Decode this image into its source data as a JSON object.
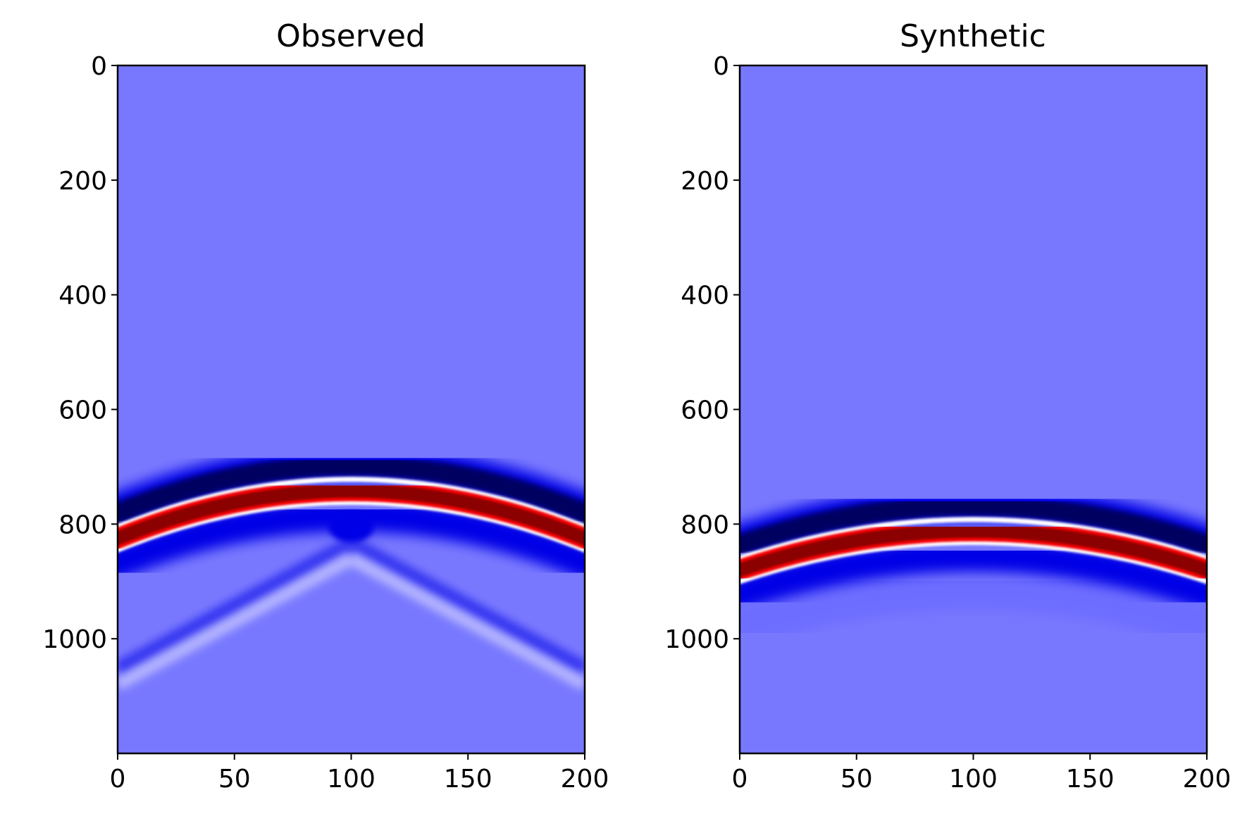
{
  "chart_data": [
    {
      "type": "heatmap",
      "title": "Observed",
      "xlabel": "",
      "ylabel": "",
      "xlim": [
        0,
        200
      ],
      "ylim": [
        1200,
        0
      ],
      "x_ticks": [
        0,
        50,
        100,
        150,
        200
      ],
      "y_ticks": [
        0,
        200,
        400,
        600,
        800,
        1000
      ],
      "colormap": "seismic",
      "colors": {
        "background": "#7878ff",
        "negative": "#000060",
        "negative_mid": "#0000e6",
        "positive": "#8b0000",
        "positive_mid": "#ff0000",
        "zero": "#ffffff"
      },
      "events": [
        {
          "name": "direct-wave",
          "apex_x": 100,
          "apex_time": 742,
          "edge_time": 825
        },
        {
          "name": "diffraction-left",
          "from": [
            0,
            1080
          ],
          "to": [
            100,
            860
          ]
        },
        {
          "name": "diffraction-right",
          "from": [
            100,
            860
          ],
          "to": [
            200,
            1080
          ]
        }
      ]
    },
    {
      "type": "heatmap",
      "title": "Synthetic",
      "xlabel": "",
      "ylabel": "",
      "xlim": [
        0,
        200
      ],
      "ylim": [
        1200,
        0
      ],
      "x_ticks": [
        0,
        50,
        100,
        150,
        200
      ],
      "y_ticks": [
        0,
        200,
        400,
        600,
        800,
        1000
      ],
      "colormap": "seismic",
      "colors": {
        "background": "#7878ff",
        "negative": "#000060",
        "negative_mid": "#0000e6",
        "positive": "#8b0000",
        "positive_mid": "#ff0000",
        "zero": "#ffffff"
      },
      "events": [
        {
          "name": "direct-wave",
          "apex_x": 100,
          "apex_time": 812,
          "edge_time": 880
        }
      ]
    }
  ]
}
